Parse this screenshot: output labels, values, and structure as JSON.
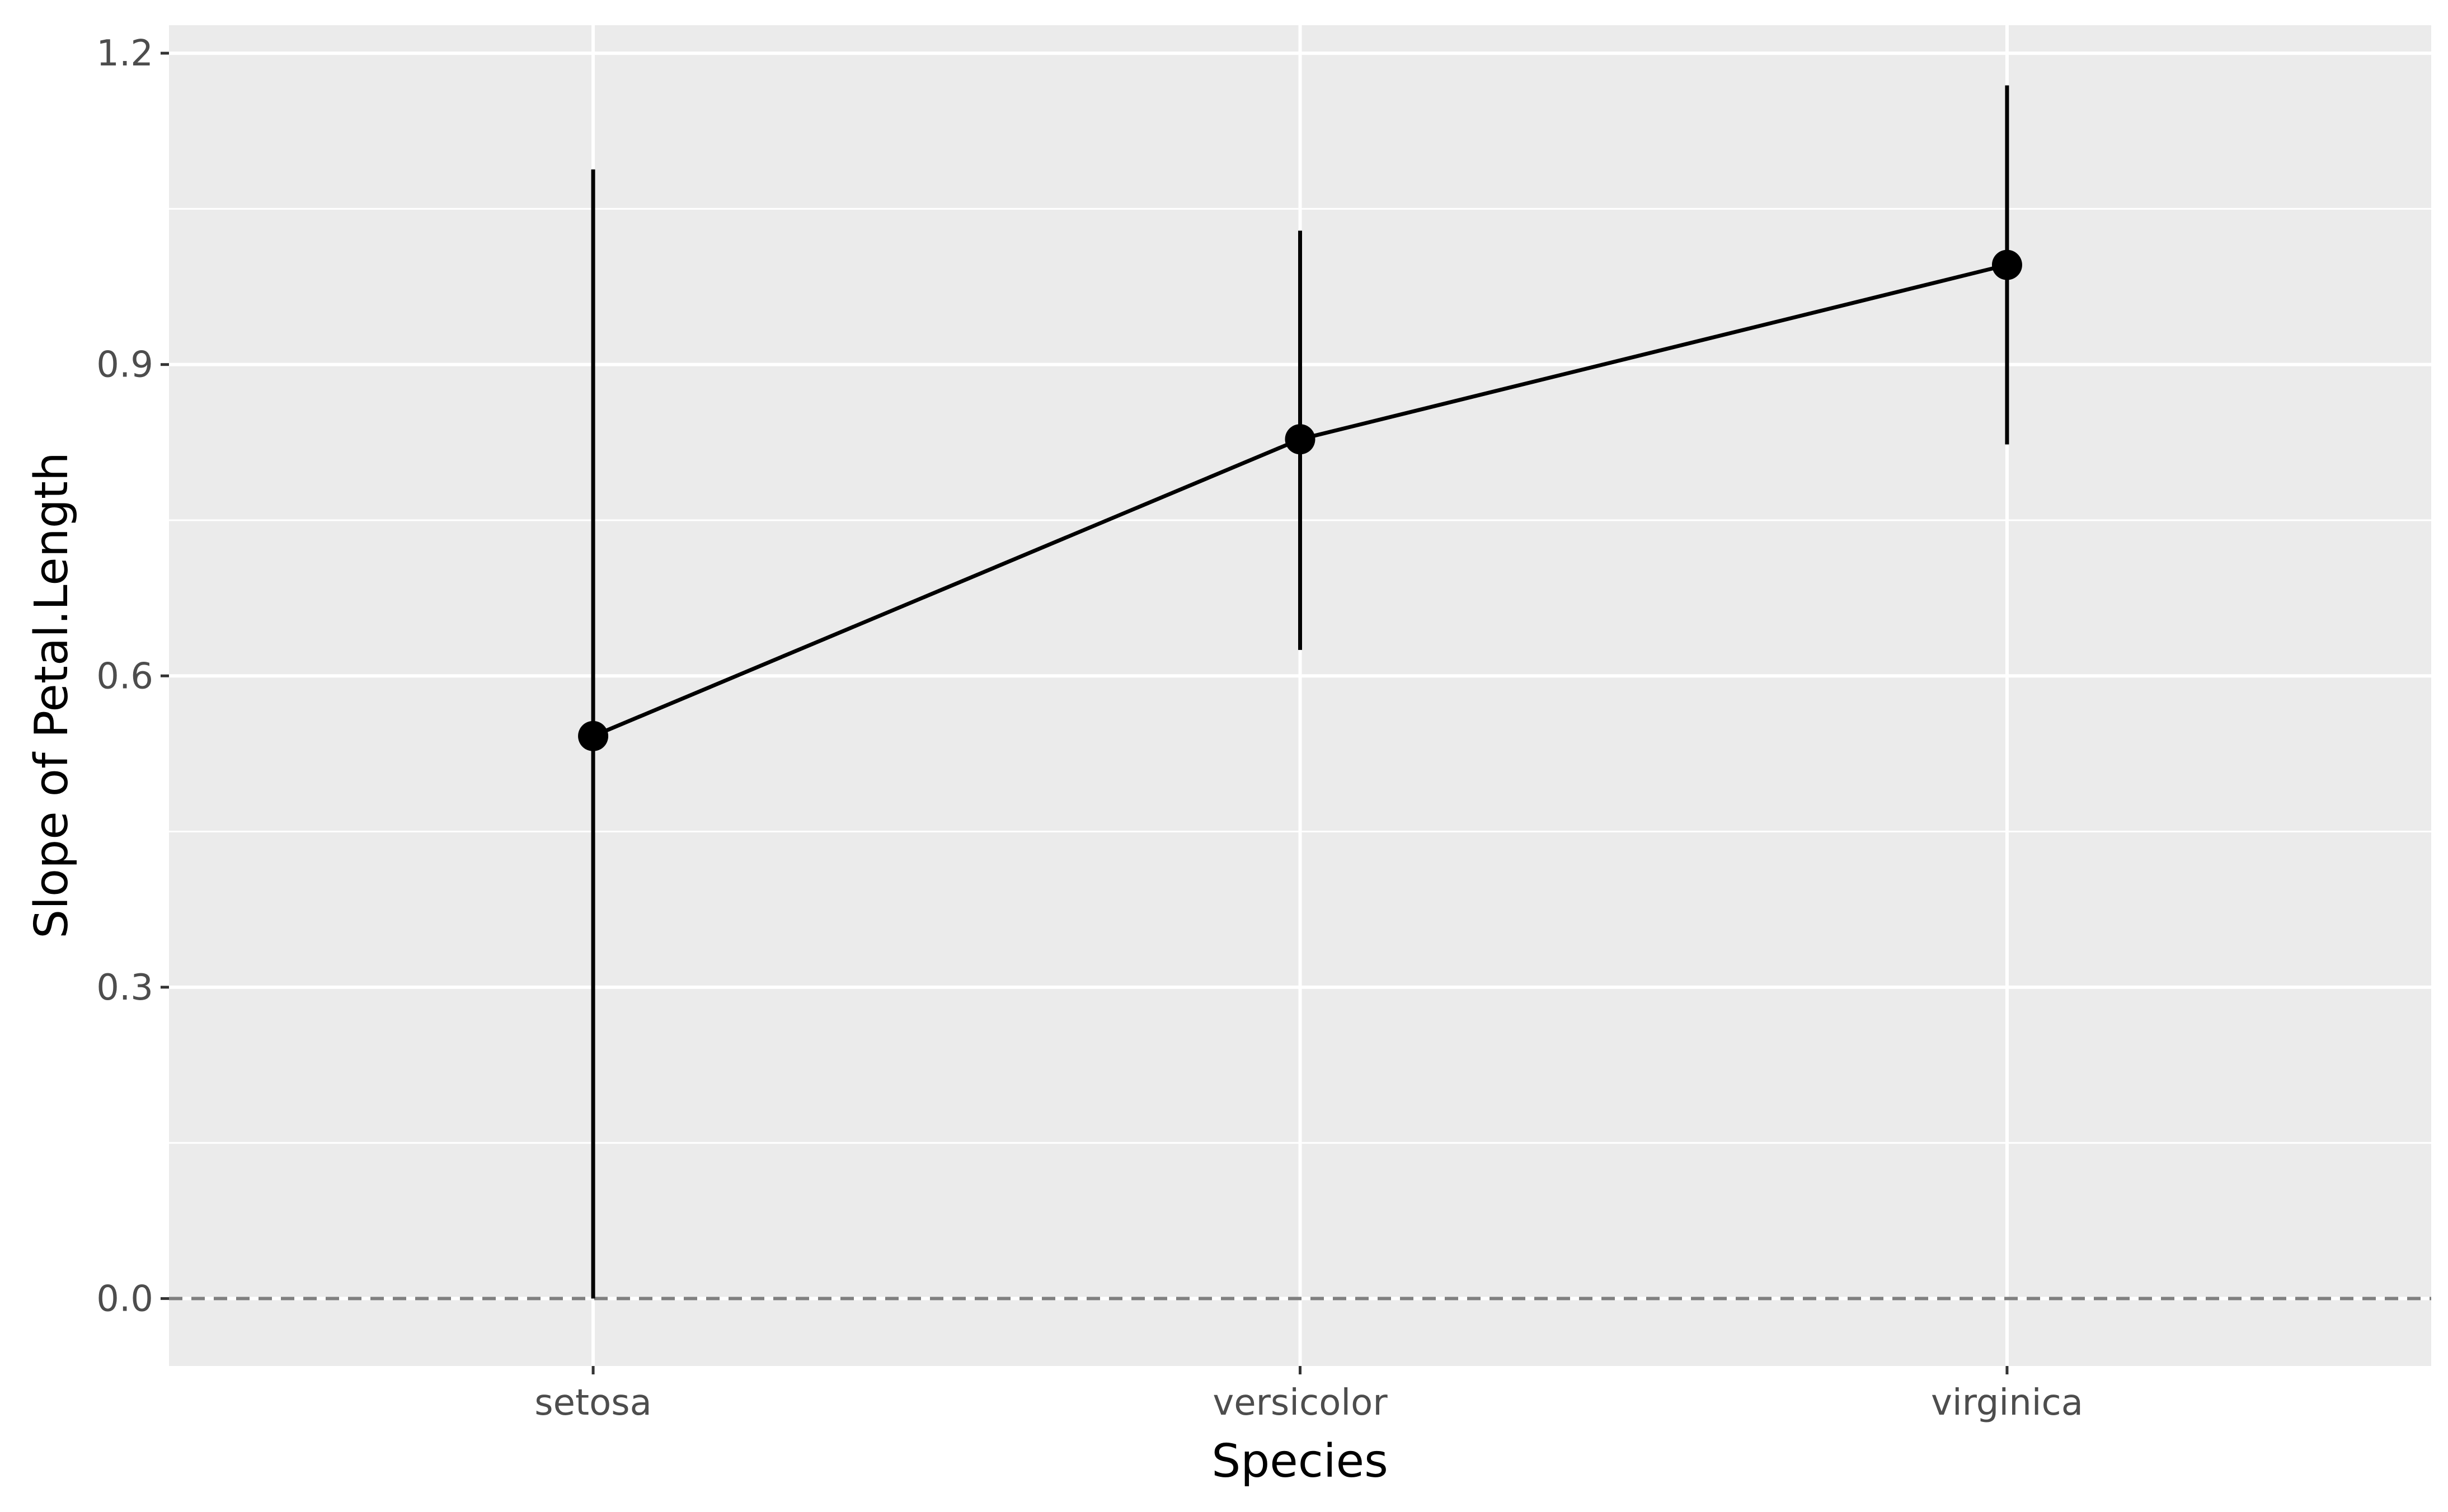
{
  "chart_data": {
    "type": "scatter",
    "title": "",
    "xlabel": "Species",
    "ylabel": "Slope of Petal.Length",
    "categories": [
      "setosa",
      "versicolor",
      "virginica"
    ],
    "series": [
      {
        "values": [
          0.542,
          0.828,
          0.996
        ],
        "lower": [
          0.0,
          0.625,
          0.823
        ],
        "upper": [
          1.088,
          1.029,
          1.169
        ],
        "connected": true,
        "error_bars": true
      }
    ],
    "ylim": [
      -0.065,
      1.227
    ],
    "yticks": [
      0.0,
      0.3,
      0.6,
      0.9,
      1.2
    ],
    "ytick_labels": [
      "0.0",
      "0.3",
      "0.6",
      "0.9",
      "1.2"
    ],
    "reference_line": {
      "y": 0.0,
      "style": "dashed",
      "color": "#7f7f7f"
    },
    "grid": true,
    "legend": "none",
    "colors": {
      "panel": "#ebebeb",
      "grid": "#ffffff",
      "marks": "#000000",
      "tick_text": "#4d4d4d"
    }
  }
}
